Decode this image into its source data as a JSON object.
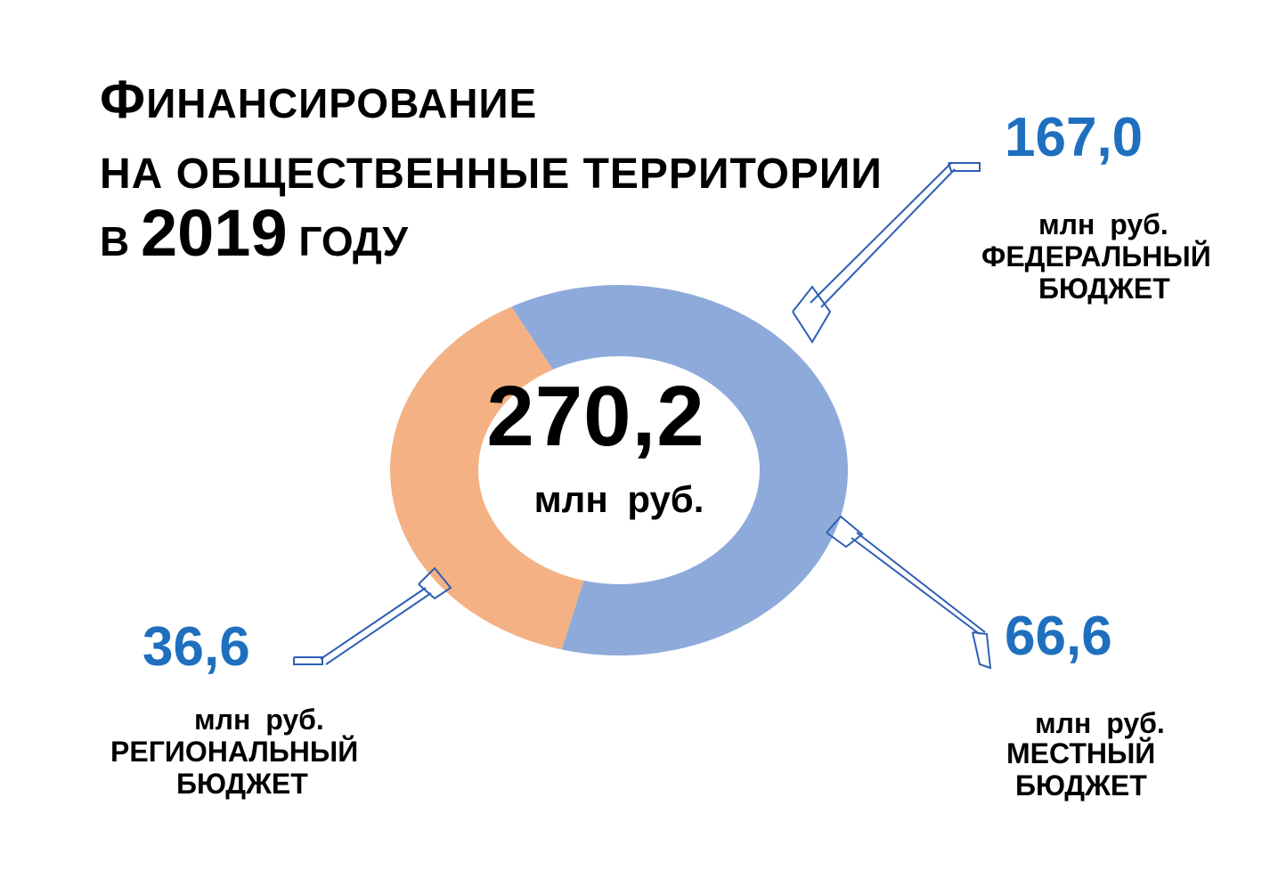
{
  "title": {
    "line1_first_letter": "Ф",
    "line1_rest": "ИНАНСИРОВАНИЕ",
    "line2": "НА ОБЩЕСТВЕННЫЕ ТЕРРИТОРИИ",
    "line3_prefix": "В ",
    "line3_year": "2019",
    "line3_suffix": " ГОДУ"
  },
  "center": {
    "value": "270,2",
    "unit": "млн руб."
  },
  "labels": {
    "federal": {
      "value": "167,0",
      "unit": "млн руб.",
      "name_line1": "ФЕДЕРАЛЬНЫЙ",
      "name_line2": "БЮДЖЕТ"
    },
    "local": {
      "value": "66,6",
      "unit": "млн руб.",
      "name_line1": "МЕСТНЫЙ",
      "name_line2": "БЮДЖЕТ"
    },
    "regional": {
      "value": "36,6",
      "unit": "млн руб.",
      "name_line1": "РЕГИОНАЛЬНЫЙ",
      "name_line2": "БЮДЖЕТ"
    }
  },
  "chart_data": {
    "type": "pie",
    "title": "ФИНАНСИРОВАНИЕ НА ОБЩЕСТВЕННЫЕ ТЕРРИТОРИИ В 2019 ГОДУ",
    "total": 270.2,
    "unit": "млн руб.",
    "slices": [
      {
        "label": "ФЕДЕРАЛЬНЫЙ БЮДЖЕТ",
        "value": 167.0,
        "color": "#8eaadb"
      },
      {
        "label": "МЕСТНЫЙ БЮДЖЕТ",
        "value": 66.6,
        "color": "#f4b183"
      },
      {
        "label": "РЕГИОНАЛЬНЫЙ БЮДЖЕТ",
        "value": 36.6,
        "color": "#f4b183"
      }
    ]
  },
  "colors": {
    "accent": "#1f6fbf",
    "federal": "#8eaadb",
    "other": "#f4b183",
    "text": "#000000"
  }
}
